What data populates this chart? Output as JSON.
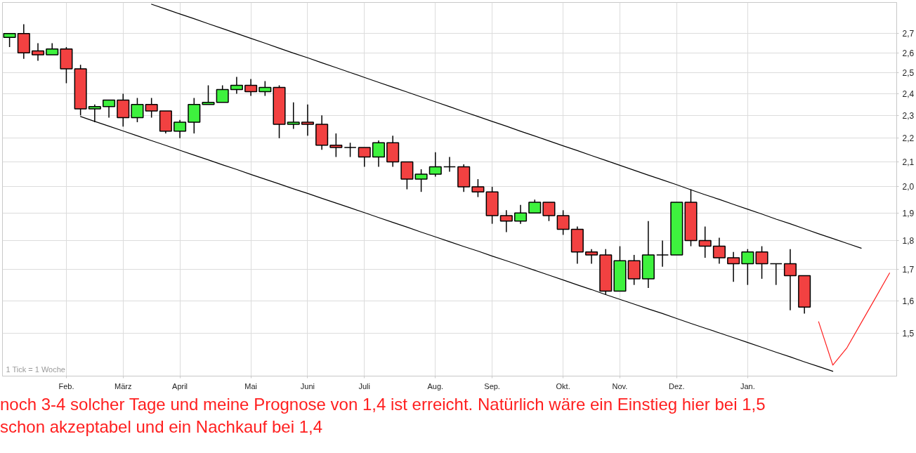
{
  "chart_data": {
    "type": "candlestick",
    "categories": [
      null,
      null,
      null,
      null,
      "Feb.",
      null,
      null,
      null,
      "März",
      null,
      null,
      null,
      "April",
      null,
      null,
      null,
      null,
      "Mai",
      null,
      null,
      null,
      "Juni",
      null,
      null,
      null,
      "Juli",
      null,
      null,
      null,
      null,
      "Aug.",
      null,
      null,
      null,
      "Sep.",
      null,
      null,
      null,
      null,
      "Okt.",
      null,
      null,
      null,
      "Nov.",
      null,
      null,
      null,
      "Dez.",
      null,
      null,
      null,
      null,
      "Jan.",
      null,
      null,
      null,
      null,
      null,
      null,
      null,
      null,
      null,
      null
    ],
    "ohlc": [
      [
        2.68,
        2.7,
        2.63,
        2.7
      ],
      [
        2.7,
        2.75,
        2.57,
        2.6
      ],
      [
        2.61,
        2.65,
        2.56,
        2.59
      ],
      [
        2.59,
        2.65,
        2.59,
        2.62
      ],
      [
        2.62,
        2.63,
        2.45,
        2.52
      ],
      [
        2.52,
        2.54,
        2.3,
        2.33
      ],
      [
        2.33,
        2.35,
        2.27,
        2.34
      ],
      [
        2.34,
        2.37,
        2.29,
        2.37
      ],
      [
        2.37,
        2.4,
        2.25,
        2.29
      ],
      [
        2.29,
        2.38,
        2.27,
        2.35
      ],
      [
        2.35,
        2.38,
        2.29,
        2.32
      ],
      [
        2.32,
        2.32,
        2.22,
        2.23
      ],
      [
        2.23,
        2.28,
        2.2,
        2.27
      ],
      [
        2.27,
        2.38,
        2.22,
        2.35
      ],
      [
        2.35,
        2.44,
        2.35,
        2.36
      ],
      [
        2.36,
        2.44,
        2.36,
        2.42
      ],
      [
        2.42,
        2.48,
        2.4,
        2.44
      ],
      [
        2.44,
        2.47,
        2.39,
        2.41
      ],
      [
        2.41,
        2.46,
        2.39,
        2.43
      ],
      [
        2.43,
        2.44,
        2.2,
        2.26
      ],
      [
        2.26,
        2.36,
        2.24,
        2.27
      ],
      [
        2.27,
        2.35,
        2.21,
        2.26
      ],
      [
        2.26,
        2.3,
        2.15,
        2.17
      ],
      [
        2.17,
        2.22,
        2.12,
        2.16
      ],
      [
        2.16,
        2.18,
        2.12,
        2.16
      ],
      [
        2.16,
        2.16,
        2.08,
        2.12
      ],
      [
        2.12,
        2.19,
        2.08,
        2.18
      ],
      [
        2.18,
        2.21,
        2.08,
        2.1
      ],
      [
        2.1,
        2.1,
        1.99,
        2.03
      ],
      [
        2.03,
        2.07,
        1.98,
        2.05
      ],
      [
        2.05,
        2.14,
        2.04,
        2.08
      ],
      [
        2.08,
        2.12,
        2.06,
        2.08
      ],
      [
        2.08,
        2.09,
        1.98,
        2.0
      ],
      [
        2.0,
        2.03,
        1.96,
        1.98
      ],
      [
        1.98,
        2.0,
        1.86,
        1.89
      ],
      [
        1.89,
        1.91,
        1.83,
        1.87
      ],
      [
        1.87,
        1.93,
        1.86,
        1.9
      ],
      [
        1.9,
        1.95,
        1.9,
        1.94
      ],
      [
        1.94,
        1.94,
        1.87,
        1.89
      ],
      [
        1.89,
        1.91,
        1.82,
        1.84
      ],
      [
        1.84,
        1.85,
        1.72,
        1.76
      ],
      [
        1.76,
        1.77,
        1.72,
        1.75
      ],
      [
        1.75,
        1.77,
        1.62,
        1.63
      ],
      [
        1.63,
        1.78,
        1.63,
        1.73
      ],
      [
        1.73,
        1.75,
        1.65,
        1.67
      ],
      [
        1.67,
        1.87,
        1.64,
        1.75
      ],
      [
        1.75,
        1.8,
        1.71,
        1.75
      ],
      [
        1.75,
        1.94,
        1.75,
        1.94
      ],
      [
        1.94,
        1.99,
        1.78,
        1.8
      ],
      [
        1.8,
        1.85,
        1.74,
        1.78
      ],
      [
        1.78,
        1.81,
        1.72,
        1.74
      ],
      [
        1.74,
        1.76,
        1.66,
        1.72
      ],
      [
        1.72,
        1.77,
        1.65,
        1.76
      ],
      [
        1.76,
        1.78,
        1.67,
        1.72
      ],
      [
        1.72,
        1.72,
        1.65,
        1.72
      ],
      [
        1.72,
        1.77,
        1.57,
        1.68
      ],
      [
        1.68,
        1.68,
        1.56,
        1.58
      ],
      null,
      null,
      null,
      null,
      null,
      null
    ],
    "colors": [
      "#3ef23e",
      "#f24141",
      "#f24141",
      "#3ef23e",
      "#f24141",
      "#f24141",
      "#3ef23e",
      "#3ef23e",
      "#f24141",
      "#3ef23e",
      "#f24141",
      "#f24141",
      "#3ef23e",
      "#3ef23e",
      "#3ef23e",
      "#3ef23e",
      "#3ef23e",
      "#f24141",
      "#3ef23e",
      "#f24141",
      "#3ef23e",
      "#f24141",
      "#f24141",
      "#f24141",
      "#000000",
      "#f24141",
      "#3ef23e",
      "#f24141",
      "#f24141",
      "#3ef23e",
      "#3ef23e",
      "#000000",
      "#f24141",
      "#f24141",
      "#f24141",
      "#f24141",
      "#3ef23e",
      "#3ef23e",
      "#f24141",
      "#f24141",
      "#f24141",
      "#f24141",
      "#f24141",
      "#3ef23e",
      "#f24141",
      "#3ef23e",
      "#000000",
      "#3ef23e",
      "#f24141",
      "#f24141",
      "#f24141",
      "#f24141",
      "#3ef23e",
      "#f24141",
      "#000000",
      "#f24141",
      "#f24141",
      null,
      null,
      null,
      null,
      null,
      null
    ],
    "series": [
      {
        "type": "line",
        "color": "#000000",
        "values": [
          null,
          null,
          null,
          null,
          null,
          null,
          null,
          null,
          null,
          null,
          2.86,
          2.833,
          2.806,
          2.78,
          2.753,
          2.727,
          2.701,
          2.675,
          2.65,
          2.624,
          2.599,
          2.575,
          2.55,
          2.526,
          2.502,
          2.478,
          2.454,
          2.431,
          2.408,
          2.385,
          2.362,
          2.34,
          2.317,
          2.295,
          2.273,
          2.252,
          2.23,
          2.209,
          2.188,
          2.167,
          2.147,
          2.126,
          2.106,
          2.086,
          2.066,
          2.046,
          2.027,
          2.008,
          1.988,
          1.969,
          1.951,
          1.932,
          1.914,
          1.896,
          1.877,
          1.86,
          1.842,
          1.824,
          1.807,
          1.79,
          1.773,
          null,
          null
        ]
      },
      {
        "type": "line",
        "color": "#000000",
        "values": [
          null,
          null,
          null,
          null,
          null,
          2.295,
          2.273,
          2.252,
          2.231,
          2.21,
          2.189,
          2.169,
          2.148,
          2.128,
          2.108,
          2.088,
          2.069,
          2.049,
          2.03,
          2.011,
          1.992,
          1.974,
          1.955,
          1.937,
          1.919,
          1.901,
          1.883,
          1.865,
          1.848,
          1.83,
          1.813,
          1.796,
          1.779,
          1.763,
          1.746,
          1.73,
          1.714,
          1.698,
          1.682,
          1.666,
          1.65,
          1.635,
          1.619,
          1.604,
          1.589,
          1.574,
          1.56,
          1.545,
          1.53,
          1.516,
          1.502,
          1.488,
          1.474,
          1.46,
          1.446,
          1.433,
          1.419,
          1.406,
          1.393,
          null,
          null,
          null,
          null
        ]
      },
      {
        "type": "line",
        "color": "#ff2020",
        "values": [
          null,
          null,
          null,
          null,
          null,
          null,
          null,
          null,
          null,
          null,
          null,
          null,
          null,
          null,
          null,
          null,
          null,
          null,
          null,
          null,
          null,
          null,
          null,
          null,
          null,
          null,
          null,
          null,
          null,
          null,
          null,
          null,
          null,
          null,
          null,
          null,
          null,
          null,
          null,
          null,
          null,
          null,
          null,
          null,
          null,
          null,
          null,
          null,
          null,
          null,
          null,
          null,
          null,
          null,
          null,
          null,
          null,
          1.535,
          1.41,
          1.459,
          1.532,
          1.608,
          1.689
        ]
      }
    ],
    "ylim": [
      1.38,
      2.87
    ],
    "yticks": [
      {
        "value": 1.5,
        "label": "1,5"
      },
      {
        "value": 1.6,
        "label": "1,6"
      },
      {
        "value": 1.7,
        "label": "1,7"
      },
      {
        "value": 1.8,
        "label": "1,8"
      },
      {
        "value": 1.9,
        "label": "1,9"
      },
      {
        "value": 2.0,
        "label": "2,0"
      },
      {
        "value": 2.1,
        "label": "2,1"
      },
      {
        "value": 2.2,
        "label": "2,2"
      },
      {
        "value": 2.3,
        "label": "2,3"
      },
      {
        "value": 2.4,
        "label": "2,4"
      },
      {
        "value": 2.5,
        "label": "2,5"
      },
      {
        "value": 2.6,
        "label": "2,6"
      },
      {
        "value": 2.7,
        "label": "2,7"
      }
    ],
    "log": true,
    "grid": true,
    "annotations": [
      "1 Tick = 1 Woche",
      "noch 3-4 solcher Tage und meine Prognose von 1,4 ist erreicht. Natürlich wäre ein Einstieg hier bei 1,5 schon akzeptabel und ein Nachkauf bei 1,4"
    ]
  }
}
